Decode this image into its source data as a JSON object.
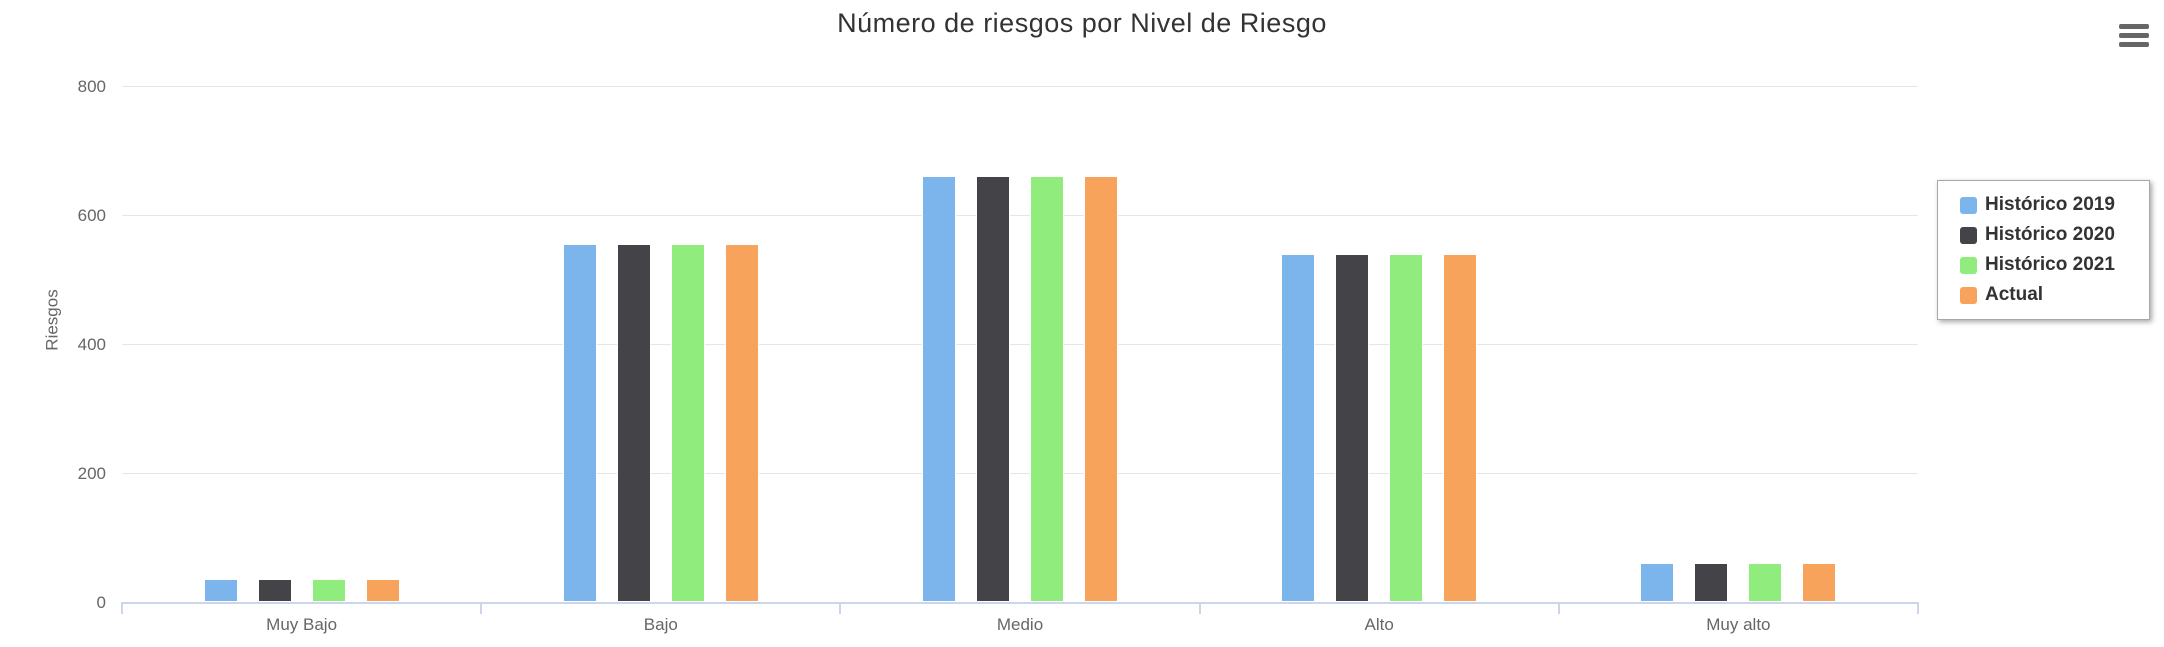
{
  "export_menu": {
    "icon": "hamburger-menu-icon"
  },
  "chart_data": {
    "type": "bar",
    "title": "Número de riesgos por Nivel de Riesgo",
    "ylabel": "Riesgos",
    "xlabel": "",
    "categories": [
      "Muy Bajo",
      "Bajo",
      "Medio",
      "Alto",
      "Muy alto"
    ],
    "series": [
      {
        "name": "Histórico 2019",
        "color": "#7cb5ec",
        "values": [
          35,
          555,
          660,
          540,
          60
        ]
      },
      {
        "name": "Histórico 2020",
        "color": "#434348",
        "values": [
          35,
          555,
          660,
          540,
          60
        ]
      },
      {
        "name": "Histórico 2021",
        "color": "#90ed7d",
        "values": [
          35,
          555,
          660,
          540,
          60
        ]
      },
      {
        "name": "Actual",
        "color": "#f7a35c",
        "values": [
          35,
          555,
          660,
          540,
          60
        ]
      }
    ],
    "ylim": [
      0,
      800
    ],
    "yticks": [
      0,
      200,
      400,
      600,
      800
    ],
    "grid": true,
    "legend_position": "right",
    "colors": {
      "grid": "#e6e6e6",
      "axis_line": "#ccd6eb",
      "tick_label": "#666666",
      "title_text": "#333333",
      "legend_text": "#333333"
    }
  }
}
